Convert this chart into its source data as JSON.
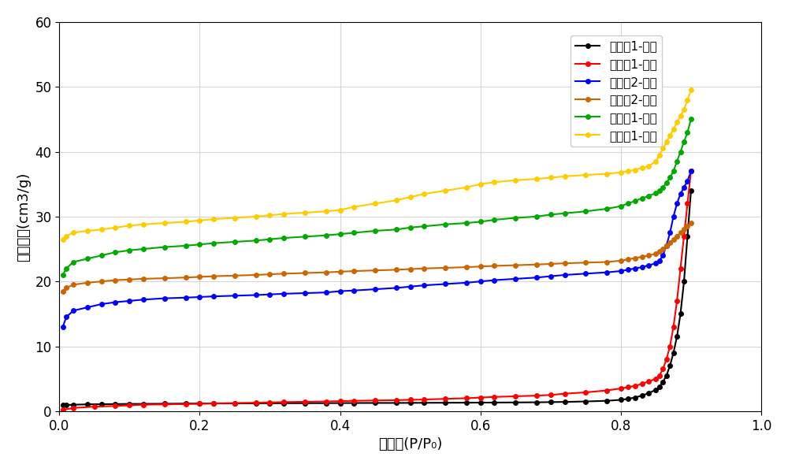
{
  "title": "",
  "xlabel": "压力比(P/P₀)",
  "ylabel": "吸附体积(cm3/g)",
  "xlim": [
    0,
    1
  ],
  "ylim": [
    0,
    60
  ],
  "xticks": [
    0,
    0.2,
    0.4,
    0.6,
    0.8,
    1
  ],
  "yticks": [
    0,
    10,
    20,
    30,
    40,
    50,
    60
  ],
  "background_color": "#ffffff",
  "grid_color": "#cccccc",
  "series": [
    {
      "label": "对比例1-吸附",
      "color": "#000000",
      "x": [
        0.005,
        0.01,
        0.02,
        0.04,
        0.06,
        0.08,
        0.1,
        0.12,
        0.15,
        0.18,
        0.2,
        0.22,
        0.25,
        0.28,
        0.3,
        0.32,
        0.35,
        0.38,
        0.4,
        0.42,
        0.45,
        0.48,
        0.5,
        0.52,
        0.55,
        0.58,
        0.6,
        0.62,
        0.65,
        0.68,
        0.7,
        0.72,
        0.75,
        0.78,
        0.8,
        0.81,
        0.82,
        0.83,
        0.84,
        0.85,
        0.855,
        0.86,
        0.865,
        0.87,
        0.875,
        0.88,
        0.885,
        0.89,
        0.895,
        0.9
      ],
      "y": [
        0.9,
        0.95,
        1.0,
        1.05,
        1.08,
        1.1,
        1.12,
        1.13,
        1.15,
        1.17,
        1.18,
        1.19,
        1.2,
        1.21,
        1.22,
        1.23,
        1.23,
        1.24,
        1.25,
        1.26,
        1.27,
        1.27,
        1.28,
        1.29,
        1.3,
        1.31,
        1.32,
        1.33,
        1.35,
        1.37,
        1.4,
        1.43,
        1.5,
        1.6,
        1.75,
        1.9,
        2.1,
        2.4,
        2.8,
        3.3,
        3.8,
        4.5,
        5.5,
        7.0,
        9.0,
        11.5,
        15.0,
        20.0,
        27.0,
        34.0
      ]
    },
    {
      "label": "对比例1-脱附",
      "color": "#ff0000",
      "x": [
        0.005,
        0.02,
        0.05,
        0.08,
        0.1,
        0.12,
        0.15,
        0.18,
        0.2,
        0.22,
        0.25,
        0.28,
        0.3,
        0.32,
        0.35,
        0.38,
        0.4,
        0.42,
        0.45,
        0.48,
        0.5,
        0.52,
        0.55,
        0.58,
        0.6,
        0.62,
        0.65,
        0.68,
        0.7,
        0.72,
        0.75,
        0.78,
        0.8,
        0.81,
        0.82,
        0.83,
        0.84,
        0.85,
        0.855,
        0.86,
        0.865,
        0.87,
        0.875,
        0.88,
        0.885,
        0.89,
        0.895,
        0.9
      ],
      "y": [
        0.2,
        0.5,
        0.7,
        0.8,
        0.9,
        1.0,
        1.05,
        1.1,
        1.15,
        1.2,
        1.25,
        1.3,
        1.35,
        1.4,
        1.45,
        1.5,
        1.55,
        1.6,
        1.65,
        1.7,
        1.75,
        1.8,
        1.9,
        2.0,
        2.1,
        2.2,
        2.3,
        2.4,
        2.5,
        2.7,
        2.9,
        3.2,
        3.5,
        3.7,
        3.9,
        4.2,
        4.6,
        5.0,
        5.5,
        6.5,
        8.0,
        10.0,
        13.0,
        17.0,
        22.0,
        27.0,
        32.0,
        37.0
      ]
    },
    {
      "label": "对比例2-吸附",
      "color": "#0000ff",
      "x": [
        0.005,
        0.01,
        0.02,
        0.04,
        0.06,
        0.08,
        0.1,
        0.12,
        0.15,
        0.18,
        0.2,
        0.22,
        0.25,
        0.28,
        0.3,
        0.32,
        0.35,
        0.38,
        0.4,
        0.42,
        0.45,
        0.48,
        0.5,
        0.52,
        0.55,
        0.58,
        0.6,
        0.62,
        0.65,
        0.68,
        0.7,
        0.72,
        0.75,
        0.78,
        0.8,
        0.81,
        0.82,
        0.83,
        0.84,
        0.85,
        0.855,
        0.86,
        0.865,
        0.87,
        0.875,
        0.88,
        0.885,
        0.89,
        0.895,
        0.9
      ],
      "y": [
        13.0,
        14.5,
        15.5,
        16.0,
        16.5,
        16.8,
        17.0,
        17.2,
        17.4,
        17.5,
        17.6,
        17.7,
        17.8,
        17.9,
        18.0,
        18.1,
        18.2,
        18.3,
        18.5,
        18.6,
        18.8,
        19.0,
        19.2,
        19.4,
        19.6,
        19.8,
        20.0,
        20.2,
        20.4,
        20.6,
        20.8,
        21.0,
        21.2,
        21.4,
        21.6,
        21.8,
        22.0,
        22.2,
        22.5,
        22.8,
        23.2,
        24.0,
        25.5,
        27.5,
        30.0,
        32.0,
        33.5,
        34.5,
        35.5,
        37.0
      ]
    },
    {
      "label": "对比例2-脱附",
      "color": "#cc6600",
      "x": [
        0.005,
        0.01,
        0.02,
        0.04,
        0.06,
        0.08,
        0.1,
        0.12,
        0.15,
        0.18,
        0.2,
        0.22,
        0.25,
        0.28,
        0.3,
        0.32,
        0.35,
        0.38,
        0.4,
        0.42,
        0.45,
        0.48,
        0.5,
        0.52,
        0.55,
        0.58,
        0.6,
        0.62,
        0.65,
        0.68,
        0.7,
        0.72,
        0.75,
        0.78,
        0.8,
        0.81,
        0.82,
        0.83,
        0.84,
        0.85,
        0.855,
        0.86,
        0.865,
        0.87,
        0.875,
        0.88,
        0.885,
        0.89,
        0.895,
        0.9
      ],
      "y": [
        18.5,
        19.0,
        19.5,
        19.8,
        20.0,
        20.2,
        20.3,
        20.4,
        20.5,
        20.6,
        20.7,
        20.8,
        20.9,
        21.0,
        21.1,
        21.2,
        21.3,
        21.4,
        21.5,
        21.6,
        21.7,
        21.8,
        21.9,
        22.0,
        22.1,
        22.2,
        22.3,
        22.4,
        22.5,
        22.6,
        22.7,
        22.8,
        22.9,
        23.0,
        23.2,
        23.4,
        23.6,
        23.8,
        24.0,
        24.3,
        24.6,
        25.0,
        25.5,
        26.0,
        26.5,
        27.0,
        27.5,
        28.0,
        28.5,
        29.0
      ]
    },
    {
      "label": "实施例1-吸附",
      "color": "#00aa00",
      "x": [
        0.005,
        0.01,
        0.02,
        0.04,
        0.06,
        0.08,
        0.1,
        0.12,
        0.15,
        0.18,
        0.2,
        0.22,
        0.25,
        0.28,
        0.3,
        0.32,
        0.35,
        0.38,
        0.4,
        0.42,
        0.45,
        0.48,
        0.5,
        0.52,
        0.55,
        0.58,
        0.6,
        0.62,
        0.65,
        0.68,
        0.7,
        0.72,
        0.75,
        0.78,
        0.8,
        0.81,
        0.82,
        0.83,
        0.84,
        0.85,
        0.855,
        0.86,
        0.865,
        0.87,
        0.875,
        0.88,
        0.885,
        0.89,
        0.895,
        0.9
      ],
      "y": [
        21.0,
        22.0,
        23.0,
        23.5,
        24.0,
        24.5,
        24.8,
        25.0,
        25.3,
        25.5,
        25.7,
        25.9,
        26.1,
        26.3,
        26.5,
        26.7,
        26.9,
        27.1,
        27.3,
        27.5,
        27.8,
        28.0,
        28.3,
        28.5,
        28.8,
        29.0,
        29.2,
        29.5,
        29.8,
        30.0,
        30.3,
        30.5,
        30.8,
        31.2,
        31.6,
        32.0,
        32.4,
        32.8,
        33.2,
        33.6,
        34.0,
        34.5,
        35.2,
        36.0,
        37.0,
        38.5,
        40.0,
        41.5,
        43.0,
        45.0
      ]
    },
    {
      "label": "实施例1-脱附",
      "color": "#ffcc00",
      "x": [
        0.005,
        0.01,
        0.02,
        0.04,
        0.06,
        0.08,
        0.1,
        0.12,
        0.15,
        0.18,
        0.2,
        0.22,
        0.25,
        0.28,
        0.3,
        0.32,
        0.35,
        0.38,
        0.4,
        0.42,
        0.45,
        0.48,
        0.5,
        0.52,
        0.55,
        0.58,
        0.6,
        0.62,
        0.65,
        0.68,
        0.7,
        0.72,
        0.75,
        0.78,
        0.8,
        0.81,
        0.82,
        0.83,
        0.84,
        0.85,
        0.855,
        0.86,
        0.865,
        0.87,
        0.875,
        0.88,
        0.885,
        0.89,
        0.895,
        0.9
      ],
      "y": [
        26.5,
        27.0,
        27.5,
        27.8,
        28.0,
        28.3,
        28.6,
        28.8,
        29.0,
        29.2,
        29.4,
        29.6,
        29.8,
        30.0,
        30.2,
        30.4,
        30.6,
        30.8,
        31.0,
        31.5,
        32.0,
        32.5,
        33.0,
        33.5,
        34.0,
        34.5,
        35.0,
        35.3,
        35.6,
        35.8,
        36.0,
        36.2,
        36.4,
        36.6,
        36.8,
        37.0,
        37.2,
        37.5,
        37.8,
        38.5,
        39.5,
        40.5,
        41.5,
        42.5,
        43.5,
        44.5,
        45.5,
        46.5,
        48.0,
        49.5
      ]
    }
  ],
  "marker": "o",
  "markersize": 4,
  "linewidth": 1.5,
  "legend_fontsize": 11,
  "axis_fontsize": 13,
  "tick_fontsize": 12
}
